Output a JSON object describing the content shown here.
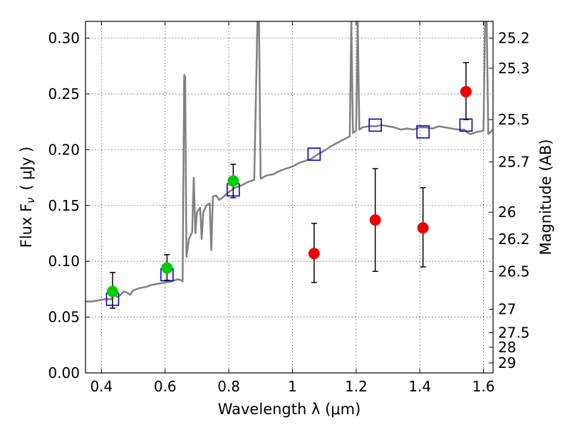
{
  "chart_data": {
    "type": "scatter",
    "xlabel": "Wavelength  λ (μm)",
    "ylabel": "Flux  F",
    "ylabel_sub": "ν",
    "ylabel_unit": "( μJy )",
    "ylabel_right": "Magnitude (AB)",
    "xlim": [
      0.35,
      1.63
    ],
    "ylim": [
      0.0,
      0.315
    ],
    "grid": true,
    "x_ticks": [
      {
        "value": 0.4,
        "label": "0.4"
      },
      {
        "value": 0.6,
        "label": "0.6"
      },
      {
        "value": 0.8,
        "label": "0.8"
      },
      {
        "value": 1.0,
        "label": "1"
      },
      {
        "value": 1.2,
        "label": "1.2"
      },
      {
        "value": 1.4,
        "label": "1.4"
      },
      {
        "value": 1.6,
        "label": "1.6"
      }
    ],
    "y_ticks": [
      {
        "value": 0.0,
        "label": "0.00"
      },
      {
        "value": 0.05,
        "label": "0.05"
      },
      {
        "value": 0.1,
        "label": "0.10"
      },
      {
        "value": 0.15,
        "label": "0.15"
      },
      {
        "value": 0.2,
        "label": "0.20"
      },
      {
        "value": 0.25,
        "label": "0.25"
      },
      {
        "value": 0.3,
        "label": "0.30"
      }
    ],
    "right_ticks": [
      {
        "flux": 0.3,
        "label": "25.2"
      },
      {
        "flux": 0.273,
        "label": "25.3"
      },
      {
        "flux": 0.227,
        "label": "25.5"
      },
      {
        "flux": 0.189,
        "label": "25.7"
      },
      {
        "flux": 0.144,
        "label": "26"
      },
      {
        "flux": 0.12,
        "label": "26.2"
      },
      {
        "flux": 0.091,
        "label": "26.5"
      },
      {
        "flux": 0.057,
        "label": "27"
      },
      {
        "flux": 0.036,
        "label": "27.5"
      },
      {
        "flux": 0.023,
        "label": "28"
      },
      {
        "flux": 0.009,
        "label": "29"
      }
    ],
    "series": [
      {
        "kind": "model-spectrum",
        "color": "#808080",
        "points": [
          [
            0.35,
            0.064
          ],
          [
            0.37,
            0.064
          ],
          [
            0.39,
            0.065
          ],
          [
            0.41,
            0.066
          ],
          [
            0.43,
            0.066
          ],
          [
            0.44,
            0.07
          ],
          [
            0.45,
            0.068
          ],
          [
            0.46,
            0.07
          ],
          [
            0.47,
            0.073
          ],
          [
            0.48,
            0.072
          ],
          [
            0.49,
            0.07
          ],
          [
            0.5,
            0.074
          ],
          [
            0.52,
            0.076
          ],
          [
            0.54,
            0.077
          ],
          [
            0.56,
            0.079
          ],
          [
            0.58,
            0.08
          ],
          [
            0.6,
            0.081
          ],
          [
            0.62,
            0.082
          ],
          [
            0.64,
            0.084
          ],
          [
            0.65,
            0.083
          ],
          [
            0.655,
            0.082
          ],
          [
            0.66,
            0.267
          ],
          [
            0.663,
            0.265
          ],
          [
            0.667,
            0.104
          ],
          [
            0.675,
            0.12
          ],
          [
            0.685,
            0.126
          ],
          [
            0.69,
            0.175
          ],
          [
            0.695,
            0.125
          ],
          [
            0.7,
            0.144
          ],
          [
            0.71,
            0.148
          ],
          [
            0.715,
            0.12
          ],
          [
            0.72,
            0.144
          ],
          [
            0.73,
            0.15
          ],
          [
            0.74,
            0.152
          ],
          [
            0.745,
            0.11
          ],
          [
            0.75,
            0.158
          ],
          [
            0.76,
            0.159
          ],
          [
            0.77,
            0.155
          ],
          [
            0.78,
            0.157
          ],
          [
            0.8,
            0.162
          ],
          [
            0.82,
            0.166
          ],
          [
            0.84,
            0.168
          ],
          [
            0.86,
            0.171
          ],
          [
            0.88,
            0.173
          ],
          [
            0.89,
            0.315
          ],
          [
            0.895,
            0.315
          ],
          [
            0.9,
            0.174
          ],
          [
            0.92,
            0.177
          ],
          [
            0.94,
            0.178
          ],
          [
            0.96,
            0.181
          ],
          [
            0.98,
            0.183
          ],
          [
            1.0,
            0.185
          ],
          [
            1.02,
            0.188
          ],
          [
            1.04,
            0.19
          ],
          [
            1.06,
            0.192
          ],
          [
            1.08,
            0.196
          ],
          [
            1.1,
            0.199
          ],
          [
            1.12,
            0.203
          ],
          [
            1.14,
            0.206
          ],
          [
            1.16,
            0.209
          ],
          [
            1.18,
            0.212
          ],
          [
            1.185,
            0.315
          ],
          [
            1.19,
            0.215
          ],
          [
            1.2,
            0.217
          ],
          [
            1.205,
            0.315
          ],
          [
            1.21,
            0.218
          ],
          [
            1.22,
            0.22
          ],
          [
            1.24,
            0.221
          ],
          [
            1.26,
            0.221
          ],
          [
            1.28,
            0.222
          ],
          [
            1.3,
            0.221
          ],
          [
            1.32,
            0.22
          ],
          [
            1.34,
            0.218
          ],
          [
            1.36,
            0.219
          ],
          [
            1.38,
            0.218
          ],
          [
            1.4,
            0.22
          ],
          [
            1.42,
            0.22
          ],
          [
            1.44,
            0.219
          ],
          [
            1.46,
            0.221
          ],
          [
            1.48,
            0.22
          ],
          [
            1.5,
            0.219
          ],
          [
            1.52,
            0.218
          ],
          [
            1.54,
            0.218
          ],
          [
            1.55,
            0.215
          ],
          [
            1.56,
            0.214
          ],
          [
            1.58,
            0.216
          ],
          [
            1.6,
            0.217
          ],
          [
            1.605,
            0.315
          ],
          [
            1.61,
            0.315
          ],
          [
            1.615,
            0.214
          ],
          [
            1.63,
            0.218
          ]
        ]
      },
      {
        "kind": "model-photometry",
        "marker": "open-square",
        "color": "#0000cc",
        "points": [
          {
            "x": 0.435,
            "y": 0.066
          },
          {
            "x": 0.606,
            "y": 0.088
          },
          {
            "x": 0.814,
            "y": 0.164
          },
          {
            "x": 1.068,
            "y": 0.196
          },
          {
            "x": 1.26,
            "y": 0.222
          },
          {
            "x": 1.41,
            "y": 0.216
          },
          {
            "x": 1.545,
            "y": 0.222
          }
        ]
      },
      {
        "kind": "detections",
        "marker": "filled-circle",
        "color": "#00cc00",
        "points": [
          {
            "x": 0.435,
            "y": 0.073,
            "err_lo": 0.058,
            "err_hi": 0.09
          },
          {
            "x": 0.606,
            "y": 0.094,
            "err_lo": 0.083,
            "err_hi": 0.106
          },
          {
            "x": 0.814,
            "y": 0.172,
            "err_lo": 0.157,
            "err_hi": 0.187
          }
        ]
      },
      {
        "kind": "upper-limits",
        "marker": "filled-circle",
        "color": "#ee0000",
        "points": [
          {
            "x": 1.068,
            "y": 0.107,
            "err_lo": 0.081,
            "err_hi": 0.134
          },
          {
            "x": 1.26,
            "y": 0.137,
            "err_lo": 0.091,
            "err_hi": 0.183
          },
          {
            "x": 1.41,
            "y": 0.13,
            "err_lo": 0.095,
            "err_hi": 0.166
          },
          {
            "x": 1.545,
            "y": 0.252,
            "err_lo": 0.227,
            "err_hi": 0.278
          }
        ]
      }
    ]
  }
}
